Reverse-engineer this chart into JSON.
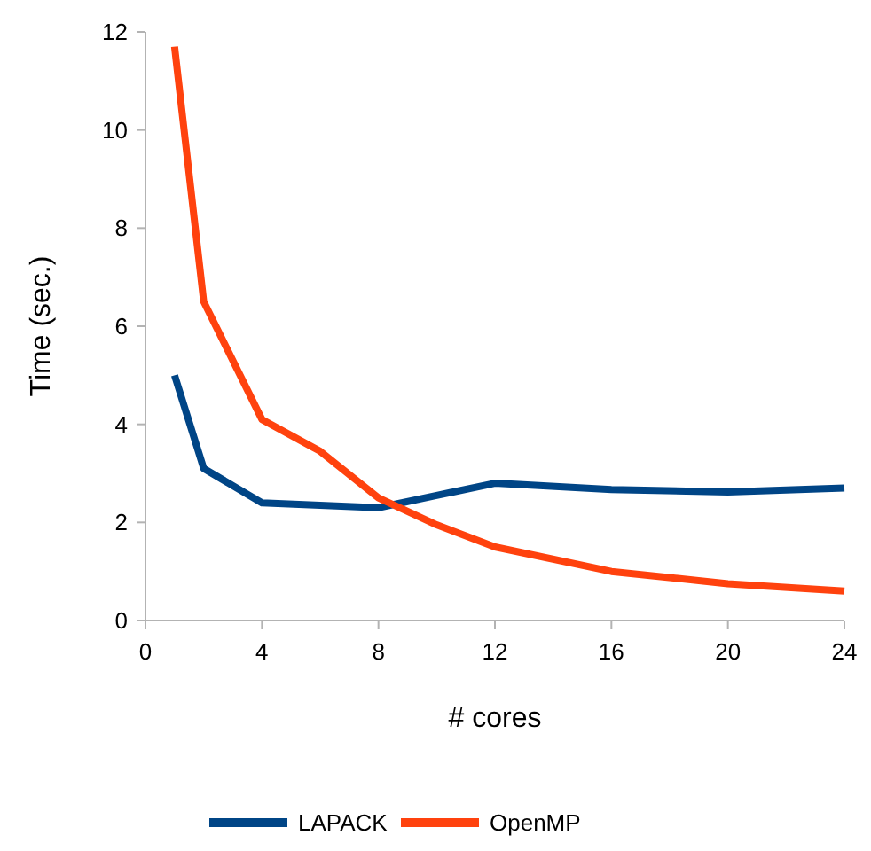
{
  "chart_data": {
    "type": "line",
    "xlabel": "# cores",
    "ylabel": "Time (sec.)",
    "x": [
      1,
      2,
      4,
      6,
      8,
      10,
      12,
      16,
      20,
      24
    ],
    "xlim": [
      0,
      24
    ],
    "xticks": [
      0,
      4,
      8,
      12,
      16,
      20,
      24
    ],
    "ylim": [
      0,
      12
    ],
    "yticks": [
      0,
      2,
      4,
      6,
      8,
      10,
      12
    ],
    "legend": "bottom",
    "marker": "none",
    "line_style": "solid",
    "series": [
      {
        "name": "LAPACK",
        "color": "#004586",
        "values": [
          5.0,
          3.1,
          2.4,
          2.35,
          2.3,
          2.55,
          2.8,
          2.67,
          2.62,
          2.7
        ]
      },
      {
        "name": "OpenMP",
        "color": "#ff420e",
        "values": [
          11.7,
          6.5,
          4.1,
          3.45,
          2.5,
          1.95,
          1.5,
          1.0,
          0.75,
          0.6
        ]
      }
    ]
  }
}
